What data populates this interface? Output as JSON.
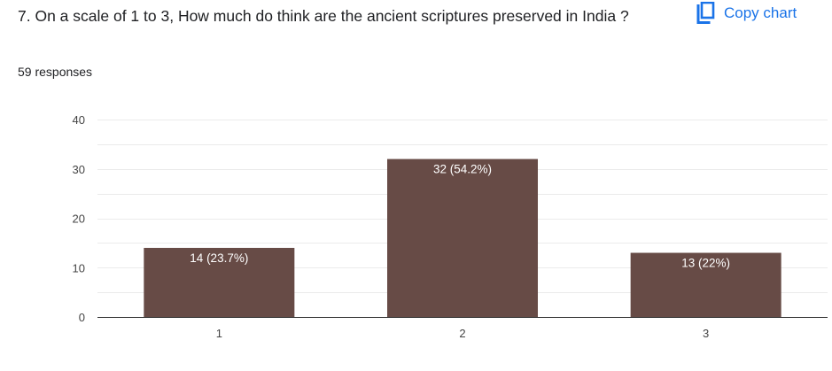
{
  "question": {
    "title": "7. On a scale of 1 to 3,  How much do think are the ancient scriptures preserved in India ?",
    "responses": "59 responses"
  },
  "actions": {
    "copy_chart_label": "Copy chart",
    "copy_icon": "copy-icon"
  },
  "colors": {
    "bar": "#674b46",
    "accent": "#1a73e8",
    "grid": "#ebebeb",
    "axis": "#333333"
  },
  "chart_data": {
    "type": "bar",
    "categories": [
      "1",
      "2",
      "3"
    ],
    "values": [
      14,
      32,
      13
    ],
    "data_labels": [
      "14 (23.7%)",
      "32 (54.2%)",
      "13 (22%)"
    ],
    "ylim": [
      0,
      40
    ],
    "yticks": [
      0,
      10,
      20,
      30,
      40
    ],
    "grid": true,
    "title": "",
    "xlabel": "",
    "ylabel": ""
  }
}
